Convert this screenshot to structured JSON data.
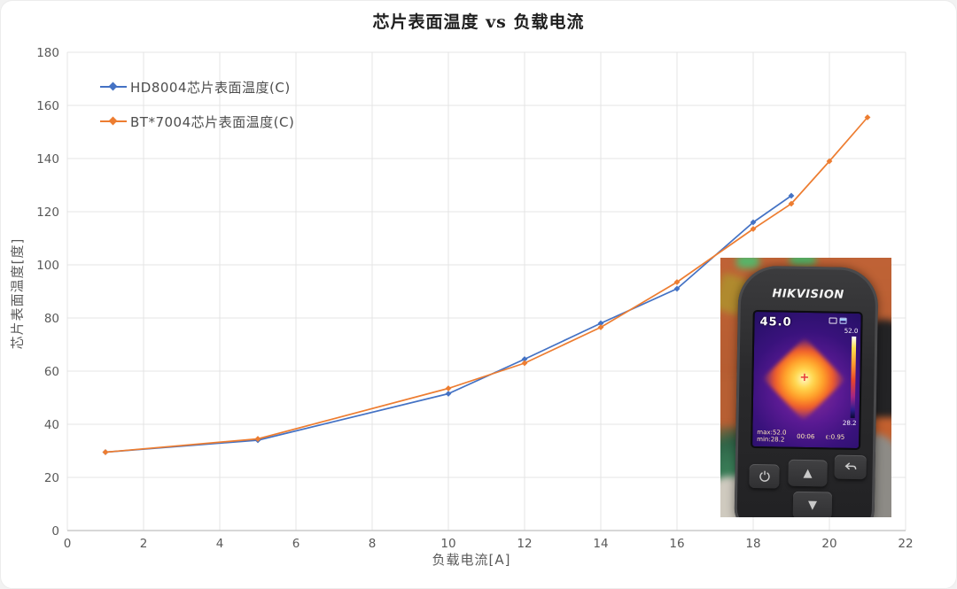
{
  "chart_data": {
    "type": "line",
    "title": "芯片表面温度 vs 负载电流",
    "xlabel": "负载电流[A]",
    "ylabel": "芯片表面温度[度]",
    "xlim": [
      0,
      22
    ],
    "ylim": [
      0,
      180
    ],
    "x_ticks": [
      0,
      2,
      4,
      6,
      8,
      10,
      12,
      14,
      16,
      18,
      20,
      22
    ],
    "y_ticks": [
      0,
      20,
      40,
      60,
      80,
      100,
      120,
      140,
      160,
      180
    ],
    "grid": true,
    "legend_position": "top-left-inside",
    "series": [
      {
        "name": "HD8004芯片表面温度(C)",
        "color": "#4472C4",
        "x": [
          1,
          5,
          10,
          12,
          14,
          16,
          18,
          19
        ],
        "y": [
          29.5,
          34,
          51.5,
          64.5,
          78,
          91,
          116,
          126
        ]
      },
      {
        "name": "BT*7004芯片表面温度(C)",
        "color": "#ED7D31",
        "x": [
          1,
          5,
          10,
          12,
          14,
          16,
          18,
          19,
          20,
          21
        ],
        "y": [
          29.5,
          34.5,
          53.5,
          63,
          76.5,
          93.5,
          113.5,
          123,
          139,
          155.5
        ]
      }
    ]
  },
  "inset_photo": {
    "brand": "HIKVISION",
    "reading": "45.0",
    "scale_max": "52.0",
    "scale_min": "28.2",
    "stats_max": "max:52.0",
    "stats_min": "min:28.2",
    "timer": "00:06",
    "emissivity": "ε:0.95",
    "crosshair": "+"
  },
  "colors": {
    "series_blue": "#4472C4",
    "series_orange": "#ED7D31",
    "gridline": "#e4e4e4",
    "axis_line": "#bfbfbf",
    "tick_text": "#595959"
  }
}
